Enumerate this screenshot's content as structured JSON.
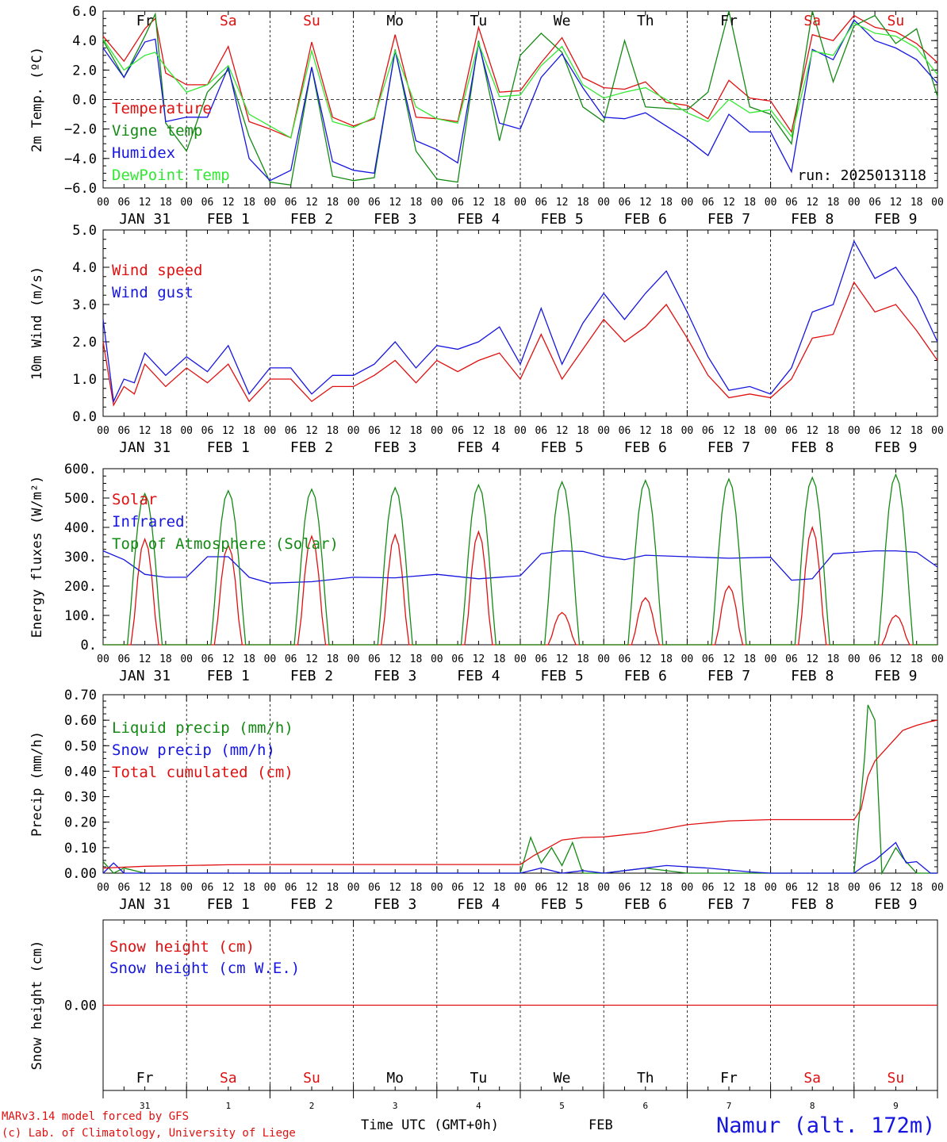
{
  "meta": {
    "model_credit": "MARv3.14 model forced by GFS",
    "lab_credit": "(c) Lab. of Climatology, University of Liege",
    "time_label": "Time UTC (GMT+0h)",
    "month_label": "FEB",
    "location": "Namur (alt. 172m)",
    "run": "run: 2025013118"
  },
  "colors": {
    "red": "#e01010",
    "green": "#138a13",
    "blue": "#1616e0",
    "lightgreen": "#33e833"
  },
  "axis": {
    "hour_ticks": [
      "00",
      "06",
      "12",
      "18"
    ],
    "end_tick": "00",
    "date_labels": [
      "JAN 31",
      "FEB 1",
      "FEB 2",
      "FEB 3",
      "FEB 4",
      "FEB 5",
      "FEB 6",
      "FEB 7",
      "FEB 8",
      "FEB 9"
    ],
    "weekdays": [
      "Fr",
      "Sa",
      "Su",
      "Mo",
      "Tu",
      "We",
      "Th",
      "Fr",
      "Sa",
      "Su"
    ],
    "weekend": [
      false,
      true,
      true,
      false,
      false,
      false,
      false,
      false,
      true,
      true
    ],
    "day_numbers": [
      "31",
      "1",
      "2",
      "3",
      "4",
      "5",
      "6",
      "7",
      "8",
      "9"
    ],
    "day_width_hours": 24,
    "total_hours": 240
  },
  "chart_data": [
    {
      "id": "temp",
      "type": "line",
      "ylabel": "2m Temp. (ºC)",
      "ylim": [
        -6,
        6
      ],
      "yticks": [
        "6.0",
        "4.0",
        "2.0",
        "0.0",
        "−2.0",
        "−4.0",
        "−6.0"
      ],
      "ytick_values": [
        6,
        4,
        2,
        0,
        -2,
        -4,
        -6
      ],
      "zero_line": true,
      "series": [
        {
          "name": "Temperature",
          "color": "red",
          "x": [
            0,
            6,
            12,
            15,
            18,
            24,
            30,
            36,
            42,
            48,
            54,
            60,
            66,
            72,
            78,
            84,
            90,
            96,
            102,
            108,
            114,
            120,
            126,
            132,
            138,
            144,
            150,
            156,
            162,
            168,
            174,
            180,
            186,
            192,
            198,
            204,
            210,
            216,
            222,
            228,
            234,
            240
          ],
          "y": [
            4.3,
            2.6,
            4.8,
            5.5,
            1.8,
            1.0,
            1.0,
            3.6,
            -1.5,
            -2.0,
            -2.6,
            3.9,
            -1.2,
            -1.8,
            -1.3,
            4.4,
            -1.2,
            -1.3,
            -1.5,
            4.9,
            0.5,
            0.6,
            2.5,
            4.2,
            1.5,
            0.8,
            0.7,
            1.2,
            -0.2,
            -0.4,
            -1.3,
            1.3,
            0.1,
            -0.1,
            -2.2,
            4.4,
            4.0,
            5.7,
            4.9,
            4.6,
            3.8,
            2.5
          ]
        },
        {
          "name": "Vigne temp",
          "color": "green",
          "x": [
            0,
            6,
            12,
            15,
            18,
            24,
            30,
            36,
            42,
            48,
            54,
            60,
            66,
            72,
            78,
            84,
            90,
            96,
            102,
            108,
            114,
            120,
            126,
            132,
            138,
            144,
            150,
            156,
            162,
            168,
            174,
            180,
            186,
            192,
            198,
            204,
            210,
            216,
            222,
            228,
            234,
            240
          ],
          "y": [
            4.0,
            1.5,
            4.3,
            5.8,
            -1.6,
            -3.5,
            0.5,
            2.0,
            -2.5,
            -5.6,
            -5.8,
            2.2,
            -5.2,
            -5.5,
            -5.3,
            3.4,
            -3.5,
            -5.4,
            -5.6,
            4.0,
            -2.8,
            3.0,
            4.5,
            3.2,
            -0.5,
            -1.5,
            4.0,
            -0.5,
            -0.6,
            -0.7,
            0.5,
            6.5,
            -0.5,
            -1.0,
            -3.0,
            6.3,
            1.2,
            5.0,
            5.7,
            3.8,
            4.8,
            0.2
          ]
        },
        {
          "name": "Humidex",
          "color": "blue",
          "x": [
            0,
            6,
            12,
            15,
            18,
            24,
            30,
            36,
            42,
            48,
            54,
            60,
            66,
            72,
            78,
            84,
            90,
            96,
            102,
            108,
            114,
            120,
            126,
            132,
            138,
            144,
            150,
            156,
            162,
            168,
            174,
            180,
            186,
            192,
            198,
            204,
            210,
            216,
            222,
            228,
            234,
            240
          ],
          "y": [
            3.5,
            1.5,
            3.9,
            4.1,
            -1.5,
            -1.2,
            -1.2,
            2.2,
            -4.0,
            -5.5,
            -4.8,
            2.2,
            -4.2,
            -4.8,
            -5.0,
            3.3,
            -2.8,
            -3.4,
            -4.3,
            3.8,
            -1.6,
            -2.0,
            1.5,
            3.1,
            0.8,
            -1.2,
            -1.3,
            -0.9,
            -1.8,
            -2.7,
            -3.8,
            -1.0,
            -2.2,
            -2.2,
            -4.9,
            3.4,
            2.7,
            5.4,
            4.0,
            3.5,
            2.7,
            1.1
          ]
        },
        {
          "name": "DewPoint Temp",
          "color": "lightgreen",
          "x": [
            0,
            6,
            12,
            15,
            18,
            24,
            30,
            36,
            42,
            48,
            54,
            60,
            66,
            72,
            78,
            84,
            90,
            96,
            102,
            108,
            114,
            120,
            126,
            132,
            138,
            144,
            150,
            156,
            162,
            168,
            174,
            180,
            186,
            192,
            198,
            204,
            210,
            216,
            222,
            228,
            234,
            240
          ],
          "y": [
            4.1,
            2.0,
            3.0,
            3.2,
            2.2,
            0.5,
            1.0,
            2.3,
            -1.0,
            -1.8,
            -2.6,
            3.3,
            -1.5,
            -1.9,
            -1.2,
            3.3,
            -0.5,
            -1.3,
            -1.6,
            3.8,
            0.2,
            0.3,
            2.3,
            3.6,
            1.0,
            0.1,
            0.5,
            0.8,
            0.0,
            -0.9,
            -1.5,
            0.0,
            -0.9,
            -0.7,
            -2.5,
            3.3,
            3.0,
            5.2,
            4.5,
            4.3,
            3.5,
            1.7
          ]
        }
      ]
    },
    {
      "id": "wind",
      "type": "line",
      "ylabel": "10m Wind (m/s)",
      "ylim": [
        0,
        5
      ],
      "yticks": [
        "5.0",
        "4.0",
        "3.0",
        "2.0",
        "1.0",
        "0.0"
      ],
      "ytick_values": [
        5,
        4,
        3,
        2,
        1,
        0
      ],
      "series": [
        {
          "name": "Wind speed",
          "color": "red",
          "x": [
            0,
            3,
            6,
            9,
            12,
            18,
            24,
            30,
            36,
            42,
            48,
            54,
            60,
            66,
            72,
            78,
            84,
            90,
            96,
            102,
            108,
            114,
            120,
            126,
            132,
            138,
            144,
            150,
            156,
            162,
            168,
            174,
            180,
            186,
            192,
            198,
            204,
            210,
            216,
            222,
            228,
            234,
            240
          ],
          "y": [
            2.0,
            0.3,
            0.8,
            0.6,
            1.4,
            0.8,
            1.3,
            0.9,
            1.4,
            0.4,
            1.0,
            1.0,
            0.4,
            0.8,
            0.8,
            1.1,
            1.5,
            0.9,
            1.5,
            1.2,
            1.5,
            1.7,
            1.0,
            2.2,
            1.0,
            1.8,
            2.6,
            2.0,
            2.4,
            3.0,
            2.1,
            1.1,
            0.5,
            0.6,
            0.5,
            1.0,
            2.1,
            2.2,
            3.6,
            2.8,
            3.0,
            2.3,
            1.5
          ]
        },
        {
          "name": "Wind gust",
          "color": "blue",
          "x": [
            0,
            3,
            6,
            9,
            12,
            18,
            24,
            30,
            36,
            42,
            48,
            54,
            60,
            66,
            72,
            78,
            84,
            90,
            96,
            102,
            108,
            114,
            120,
            126,
            132,
            138,
            144,
            150,
            156,
            162,
            168,
            174,
            180,
            186,
            192,
            198,
            204,
            210,
            216,
            222,
            228,
            234,
            240
          ],
          "y": [
            2.6,
            0.4,
            1.0,
            0.9,
            1.7,
            1.1,
            1.6,
            1.2,
            1.9,
            0.6,
            1.3,
            1.3,
            0.6,
            1.1,
            1.1,
            1.4,
            2.0,
            1.3,
            1.9,
            1.8,
            2.0,
            2.4,
            1.4,
            2.9,
            1.4,
            2.5,
            3.3,
            2.6,
            3.3,
            3.9,
            2.8,
            1.6,
            0.7,
            0.8,
            0.6,
            1.3,
            2.8,
            3.0,
            4.7,
            3.7,
            4.0,
            3.2,
            2.0
          ]
        }
      ]
    },
    {
      "id": "energy",
      "type": "line",
      "ylabel": "Energy fluxes (W/m²)",
      "ylim": [
        0,
        600
      ],
      "yticks": [
        "600.",
        "500.",
        "400.",
        "300.",
        "200.",
        "100.",
        "0."
      ],
      "ytick_values": [
        600,
        500,
        400,
        300,
        200,
        100,
        0
      ],
      "series": [
        {
          "name": "Solar",
          "color": "red",
          "peaks": [
            360,
            340,
            370,
            375,
            385,
            110,
            160,
            200,
            400,
            100
          ]
        },
        {
          "name": "Infrared",
          "color": "blue",
          "x": [
            0,
            6,
            12,
            18,
            24,
            30,
            36,
            42,
            48,
            60,
            72,
            84,
            96,
            108,
            120,
            126,
            132,
            138,
            144,
            150,
            156,
            168,
            180,
            192,
            198,
            204,
            210,
            216,
            222,
            228,
            234,
            240
          ],
          "y": [
            320,
            290,
            240,
            230,
            230,
            300,
            300,
            230,
            210,
            215,
            230,
            228,
            240,
            225,
            235,
            310,
            320,
            318,
            300,
            290,
            305,
            300,
            295,
            298,
            220,
            225,
            310,
            315,
            320,
            320,
            315,
            265
          ]
        },
        {
          "name": "Top of Atmosphere (Solar)",
          "color": "green",
          "peaks": [
            515,
            525,
            530,
            535,
            545,
            555,
            560,
            565,
            570,
            580
          ]
        }
      ]
    },
    {
      "id": "precip",
      "type": "line",
      "ylabel": "Precip (mm/h)",
      "ylim": [
        0,
        0.7
      ],
      "yticks": [
        "0.70",
        "0.60",
        "0.50",
        "0.40",
        "0.30",
        "0.20",
        "0.10",
        "0.00"
      ],
      "ytick_values": [
        0.7,
        0.6,
        0.5,
        0.4,
        0.3,
        0.2,
        0.1,
        0
      ],
      "series": [
        {
          "name": "Liquid precip (mm/h)",
          "color": "green",
          "x": [
            0,
            3,
            6,
            12,
            24,
            96,
            120,
            123,
            126,
            129,
            132,
            135,
            138,
            144,
            156,
            168,
            192,
            216,
            219,
            220,
            222,
            224,
            228,
            230,
            234,
            236,
            240
          ],
          "y": [
            0.045,
            0.0,
            0.02,
            0.0,
            0.0,
            0.0,
            0.0,
            0.14,
            0.04,
            0.1,
            0.03,
            0.12,
            0.0,
            0.0,
            0.02,
            0.0,
            0.0,
            0.0,
            0.45,
            0.66,
            0.6,
            0.0,
            0.1,
            0.06,
            0.0,
            0.0,
            0.0
          ]
        },
        {
          "name": "Snow precip (mm/h)",
          "color": "blue",
          "x": [
            0,
            3,
            6,
            12,
            24,
            96,
            120,
            126,
            132,
            138,
            144,
            150,
            162,
            174,
            186,
            192,
            216,
            219,
            222,
            228,
            231,
            234,
            238,
            240
          ],
          "y": [
            0.0,
            0.04,
            0.0,
            0.0,
            0.0,
            0.0,
            0.0,
            0.02,
            0.0,
            0.01,
            0.0,
            0.01,
            0.03,
            0.02,
            0.005,
            0.0,
            0.0,
            0.03,
            0.05,
            0.12,
            0.04,
            0.045,
            0.0,
            0.0
          ]
        },
        {
          "name": "Total cumulated (cm)",
          "color": "red",
          "x": [
            0,
            12,
            24,
            36,
            48,
            72,
            96,
            114,
            120,
            124,
            128,
            132,
            138,
            144,
            156,
            168,
            180,
            192,
            204,
            216,
            218,
            220,
            222,
            226,
            230,
            234,
            238,
            240
          ],
          "y": [
            0.02,
            0.027,
            0.03,
            0.033,
            0.034,
            0.034,
            0.034,
            0.034,
            0.034,
            0.07,
            0.1,
            0.13,
            0.14,
            0.142,
            0.16,
            0.19,
            0.205,
            0.21,
            0.21,
            0.21,
            0.25,
            0.38,
            0.44,
            0.5,
            0.56,
            0.58,
            0.595,
            0.6
          ]
        }
      ]
    },
    {
      "id": "snow",
      "type": "line",
      "ylabel": "Snow height (cm)",
      "ylim": [
        -1,
        1
      ],
      "yticks": [
        "0.00"
      ],
      "ytick_values": [
        0
      ],
      "series": [
        {
          "name": "Snow height (cm)",
          "color": "red",
          "x": [
            0,
            240
          ],
          "y": [
            0,
            0
          ]
        },
        {
          "name": "Snow height (cm W.E.)",
          "color": "blue",
          "x": [],
          "y": []
        }
      ]
    }
  ]
}
